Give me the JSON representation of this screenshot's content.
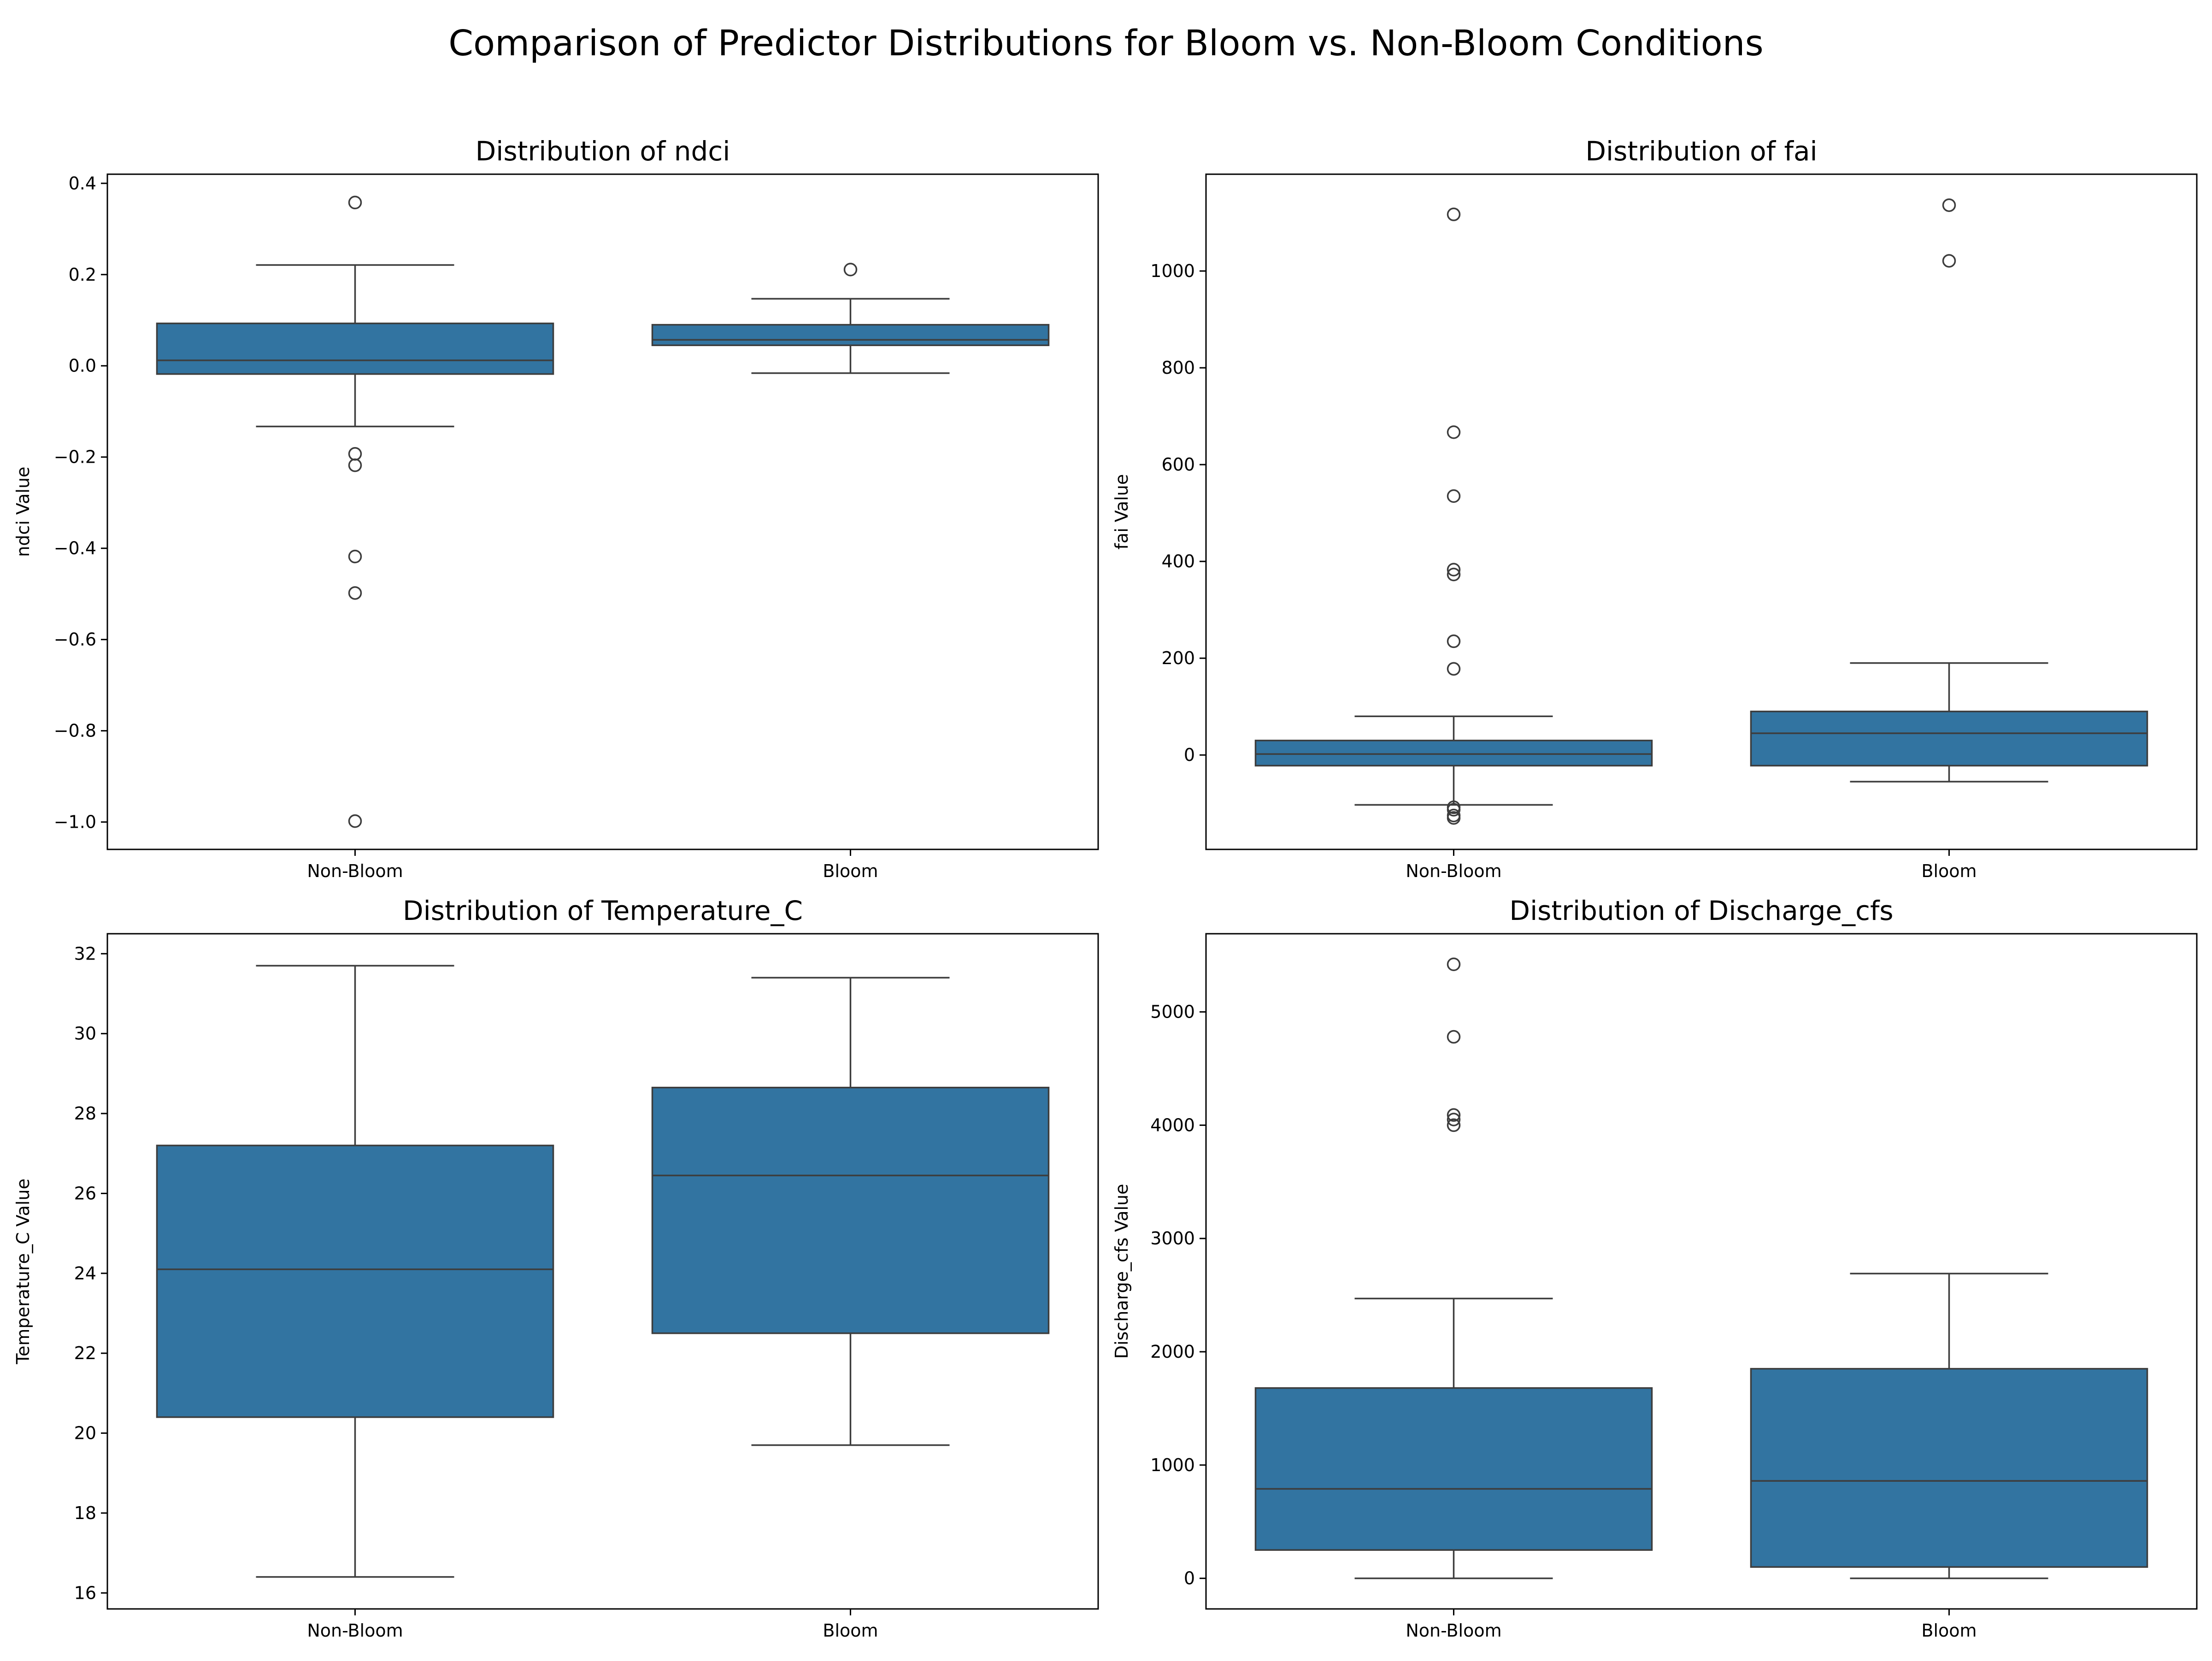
{
  "figure": {
    "title": "Comparison of Predictor Distributions for Bloom vs. Non-Bloom Conditions"
  },
  "colors": {
    "box_fill": "#3274a1",
    "line": "#3d3d3d",
    "axes": "#000000",
    "background": "#ffffff"
  },
  "chart_data": [
    {
      "type": "box",
      "title": "Distribution of ndci",
      "xlabel": "",
      "ylabel": "ndci Value",
      "categories": [
        "Non-Bloom",
        "Bloom"
      ],
      "ylim": [
        -1.06,
        0.42
      ],
      "yticks": [
        -1.0,
        -0.8,
        -0.6,
        -0.4,
        -0.2,
        0.0,
        0.2,
        0.4
      ],
      "ytick_labels": [
        "−1.0",
        "−0.8",
        "−0.6",
        "−0.4",
        "−0.2",
        "0.0",
        "0.2",
        "0.4"
      ],
      "boxes": [
        {
          "category": "Non-Bloom",
          "whisker_low": -0.133,
          "q1": -0.018,
          "median": 0.012,
          "q3": 0.093,
          "whisker_high": 0.221,
          "outliers": [
            0.358,
            -0.193,
            -0.218,
            -0.418,
            -0.498,
            -0.998
          ]
        },
        {
          "category": "Bloom",
          "whisker_low": -0.016,
          "q1": 0.045,
          "median": 0.057,
          "q3": 0.09,
          "whisker_high": 0.147,
          "outliers": [
            0.211
          ]
        }
      ]
    },
    {
      "type": "box",
      "title": "Distribution of fai",
      "xlabel": "",
      "ylabel": "fai Value",
      "categories": [
        "Non-Bloom",
        "Bloom"
      ],
      "ylim": [
        -195,
        1200
      ],
      "yticks": [
        0,
        200,
        400,
        600,
        800,
        1000
      ],
      "ytick_labels": [
        "0",
        "200",
        "400",
        "600",
        "800",
        "1000"
      ],
      "boxes": [
        {
          "category": "Non-Bloom",
          "whisker_low": -103,
          "q1": -22,
          "median": 2,
          "q3": 30,
          "whisker_high": 80,
          "outliers": [
            1117,
            667,
            535,
            383,
            373,
            235,
            178,
            -108,
            -113,
            -125,
            -130
          ]
        },
        {
          "category": "Bloom",
          "whisker_low": -55,
          "q1": -22,
          "median": 45,
          "q3": 90,
          "whisker_high": 190,
          "outliers": [
            1136,
            1021
          ]
        }
      ]
    },
    {
      "type": "box",
      "title": "Distribution of Temperature_C",
      "xlabel": "",
      "ylabel": "Temperature_C Value",
      "categories": [
        "Non-Bloom",
        "Bloom"
      ],
      "ylim": [
        15.6,
        32.5
      ],
      "yticks": [
        16,
        18,
        20,
        22,
        24,
        26,
        28,
        30,
        32
      ],
      "ytick_labels": [
        "16",
        "18",
        "20",
        "22",
        "24",
        "26",
        "28",
        "30",
        "32"
      ],
      "boxes": [
        {
          "category": "Non-Bloom",
          "whisker_low": 16.4,
          "q1": 20.4,
          "median": 24.1,
          "q3": 27.2,
          "whisker_high": 31.7,
          "outliers": []
        },
        {
          "category": "Bloom",
          "whisker_low": 19.7,
          "q1": 22.5,
          "median": 26.45,
          "q3": 28.65,
          "whisker_high": 31.4,
          "outliers": []
        }
      ]
    },
    {
      "type": "box",
      "title": "Distribution of Discharge_cfs",
      "xlabel": "",
      "ylabel": "Discharge_cfs Value",
      "categories": [
        "Non-Bloom",
        "Bloom"
      ],
      "ylim": [
        -270,
        5690
      ],
      "yticks": [
        0,
        1000,
        2000,
        3000,
        4000,
        5000
      ],
      "ytick_labels": [
        "0",
        "1000",
        "2000",
        "3000",
        "4000",
        "5000"
      ],
      "boxes": [
        {
          "category": "Non-Bloom",
          "whisker_low": 0,
          "q1": 250,
          "median": 790,
          "q3": 1680,
          "whisker_high": 2470,
          "outliers": [
            5420,
            4780,
            4090,
            4050,
            4000
          ]
        },
        {
          "category": "Bloom",
          "whisker_low": 0,
          "q1": 100,
          "median": 860,
          "q3": 1850,
          "whisker_high": 2690,
          "outliers": []
        }
      ]
    }
  ]
}
